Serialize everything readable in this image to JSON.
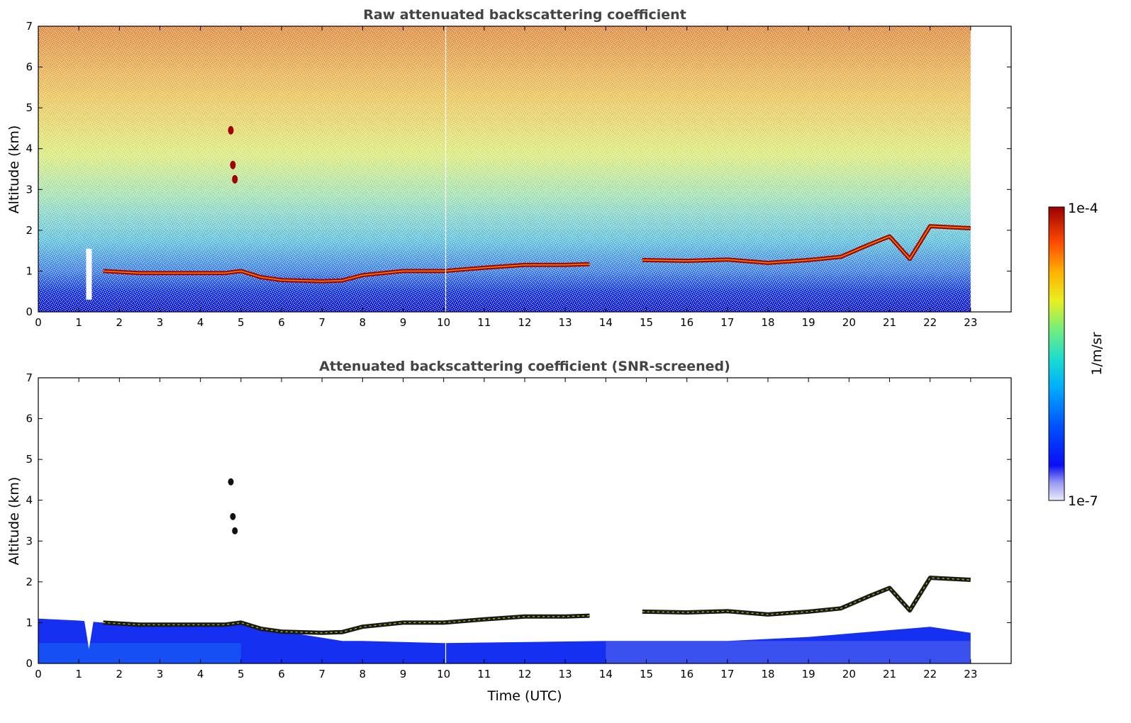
{
  "chart_data": [
    {
      "type": "heatmap",
      "title": "Raw attenuated backscattering coefficient",
      "xlabel": "",
      "ylabel": "Altitude (km)",
      "xlim": [
        0,
        24
      ],
      "ylim": [
        0,
        7
      ],
      "xticks": [
        "0",
        "1",
        "2",
        "3",
        "4",
        "5",
        "6",
        "7",
        "8",
        "9",
        "10",
        "11",
        "12",
        "13",
        "14",
        "15",
        "16",
        "17",
        "18",
        "19",
        "20",
        "21",
        "22",
        "23"
      ],
      "yticks": [
        "0",
        "1",
        "2",
        "3",
        "4",
        "5",
        "6",
        "7"
      ],
      "data_end_hour": 23,
      "features": {
        "boundary_layer_top": [
          {
            "x": 1.6,
            "y": 1.0
          },
          {
            "x": 2.5,
            "y": 0.95
          },
          {
            "x": 3.5,
            "y": 0.95
          },
          {
            "x": 4.6,
            "y": 0.95
          },
          {
            "x": 5.0,
            "y": 1.0
          },
          {
            "x": 5.5,
            "y": 0.85
          },
          {
            "x": 6.0,
            "y": 0.78
          },
          {
            "x": 7.0,
            "y": 0.75
          },
          {
            "x": 7.5,
            "y": 0.77
          },
          {
            "x": 8.0,
            "y": 0.9
          },
          {
            "x": 9.0,
            "y": 1.0
          },
          {
            "x": 10.0,
            "y": 1.0
          },
          {
            "x": 11.0,
            "y": 1.08
          },
          {
            "x": 12.0,
            "y": 1.15
          },
          {
            "x": 13.0,
            "y": 1.15
          },
          {
            "x": 13.6,
            "y": 1.17
          },
          {
            "x": 14.9,
            "y": 1.27
          },
          {
            "x": 16.0,
            "y": 1.25
          },
          {
            "x": 17.0,
            "y": 1.28
          },
          {
            "x": 18.0,
            "y": 1.2
          },
          {
            "x": 19.0,
            "y": 1.27
          },
          {
            "x": 19.8,
            "y": 1.35
          },
          {
            "x": 20.5,
            "y": 1.65
          },
          {
            "x": 21.0,
            "y": 1.85
          },
          {
            "x": 21.5,
            "y": 1.3
          },
          {
            "x": 22.0,
            "y": 2.1
          },
          {
            "x": 23.0,
            "y": 2.05
          }
        ],
        "elevated_layers": [
          {
            "x": 4.75,
            "y": 4.45
          },
          {
            "x": 4.8,
            "y": 3.6
          },
          {
            "x": 4.85,
            "y": 3.25
          }
        ],
        "precip_gap_hour": 1.25
      }
    },
    {
      "type": "heatmap",
      "title": "Attenuated backscattering coefficient (SNR-screened)",
      "xlabel": "Time (UTC)",
      "ylabel": "Altitude (km)",
      "xlim": [
        0,
        24
      ],
      "ylim": [
        0,
        7
      ],
      "xticks": [
        "0",
        "1",
        "2",
        "3",
        "4",
        "5",
        "6",
        "7",
        "8",
        "9",
        "10",
        "11",
        "12",
        "13",
        "14",
        "15",
        "16",
        "17",
        "18",
        "19",
        "20",
        "21",
        "22",
        "23"
      ],
      "yticks": [
        "0",
        "1",
        "2",
        "3",
        "4",
        "5",
        "6",
        "7"
      ]
    }
  ],
  "colorbar": {
    "label": "1/m/sr",
    "max_label": "1e-4",
    "min_label": "1e-7",
    "scale": "log",
    "colors": [
      "#e8e8f8",
      "#a0a0f0",
      "#1010f0",
      "#0050ff",
      "#00b0ff",
      "#20e0c0",
      "#80f080",
      "#f0f020",
      "#ffa000",
      "#ff3000",
      "#a00000"
    ]
  }
}
